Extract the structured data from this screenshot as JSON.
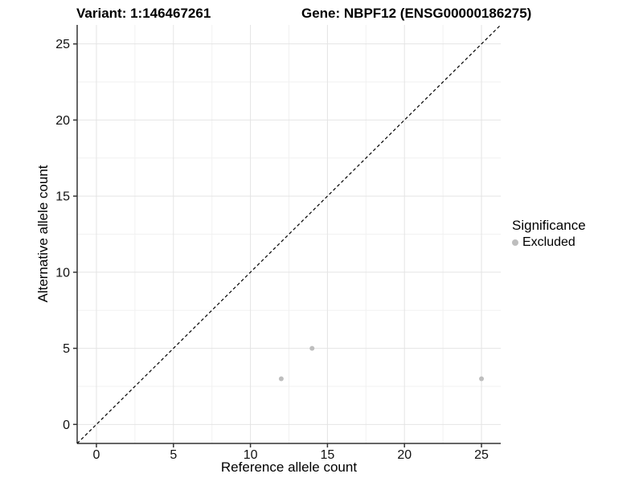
{
  "chart_data": {
    "type": "scatter",
    "title_left": "Variant: 1:146467261",
    "title_right": "Gene: NBPF12 (ENSG00000186275)",
    "xlabel": "Reference allele count",
    "ylabel": "Alternative allele count",
    "xlim": [
      -1.25,
      26.25
    ],
    "ylim": [
      -1.25,
      26.25
    ],
    "x_ticks": [
      0,
      5,
      10,
      15,
      20,
      25
    ],
    "y_ticks": [
      0,
      5,
      10,
      15,
      20,
      25
    ],
    "x_minor_ticks": [
      2.5,
      7.5,
      12.5,
      17.5,
      22.5
    ],
    "y_minor_ticks": [
      2.5,
      7.5,
      12.5,
      17.5,
      22.5
    ],
    "grid": "major+minor",
    "background": "#ffffff",
    "legend": {
      "position": "right",
      "title": "Significance",
      "items": [
        {
          "label": "Excluded",
          "color": "#bebebe"
        }
      ]
    },
    "series": [
      {
        "name": "Excluded",
        "color": "#bebebe",
        "points": [
          [
            12,
            3
          ],
          [
            14,
            5
          ],
          [
            25,
            3
          ]
        ]
      }
    ],
    "reference_line": {
      "type": "identity y=x",
      "style": "dashed",
      "color": "#000000"
    }
  }
}
